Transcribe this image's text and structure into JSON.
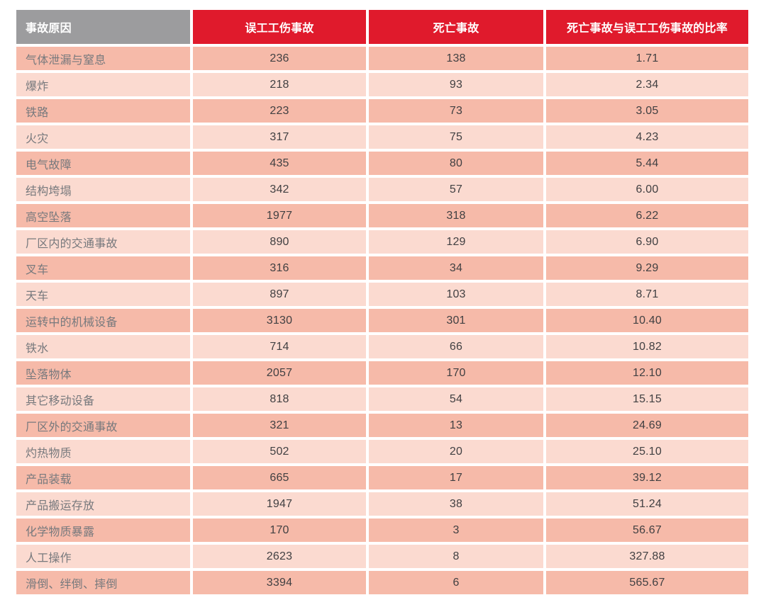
{
  "chart_data": {
    "type": "table",
    "columns": [
      "事故原因",
      "误工工伤事故",
      "死亡事故",
      "死亡事故与误工工伤事故的比率"
    ],
    "rows": [
      {
        "cause": "气体泄漏与窒息",
        "lost_time_injuries": "236",
        "fatal_accidents": "138",
        "ratio": "1.71"
      },
      {
        "cause": "爆炸",
        "lost_time_injuries": "218",
        "fatal_accidents": "93",
        "ratio": "2.34"
      },
      {
        "cause": "铁路",
        "lost_time_injuries": "223",
        "fatal_accidents": "73",
        "ratio": "3.05"
      },
      {
        "cause": "火灾",
        "lost_time_injuries": "317",
        "fatal_accidents": "75",
        "ratio": "4.23"
      },
      {
        "cause": "电气故障",
        "lost_time_injuries": "435",
        "fatal_accidents": "80",
        "ratio": "5.44"
      },
      {
        "cause": "结构垮塌",
        "lost_time_injuries": "342",
        "fatal_accidents": "57",
        "ratio": "6.00"
      },
      {
        "cause": "高空坠落",
        "lost_time_injuries": "1977",
        "fatal_accidents": "318",
        "ratio": "6.22"
      },
      {
        "cause": "厂区内的交通事故",
        "lost_time_injuries": "890",
        "fatal_accidents": "129",
        "ratio": "6.90"
      },
      {
        "cause": "叉车",
        "lost_time_injuries": "316",
        "fatal_accidents": "34",
        "ratio": "9.29"
      },
      {
        "cause": "天车",
        "lost_time_injuries": "897",
        "fatal_accidents": "103",
        "ratio": "8.71"
      },
      {
        "cause": "运转中的机械设备",
        "lost_time_injuries": "3130",
        "fatal_accidents": "301",
        "ratio": "10.40"
      },
      {
        "cause": "铁水",
        "lost_time_injuries": "714",
        "fatal_accidents": "66",
        "ratio": "10.82"
      },
      {
        "cause": "坠落物体",
        "lost_time_injuries": "2057",
        "fatal_accidents": "170",
        "ratio": "12.10"
      },
      {
        "cause": "其它移动设备",
        "lost_time_injuries": "818",
        "fatal_accidents": "54",
        "ratio": "15.15"
      },
      {
        "cause": "厂区外的交通事故",
        "lost_time_injuries": "321",
        "fatal_accidents": "13",
        "ratio": "24.69"
      },
      {
        "cause": "灼热物质",
        "lost_time_injuries": "502",
        "fatal_accidents": "20",
        "ratio": "25.10"
      },
      {
        "cause": "产品装载",
        "lost_time_injuries": "665",
        "fatal_accidents": "17",
        "ratio": "39.12"
      },
      {
        "cause": "产品搬运存放",
        "lost_time_injuries": "1947",
        "fatal_accidents": "38",
        "ratio": "51.24"
      },
      {
        "cause": "化学物质暴露",
        "lost_time_injuries": "170",
        "fatal_accidents": "3",
        "ratio": "56.67"
      },
      {
        "cause": "人工操作",
        "lost_time_injuries": "2623",
        "fatal_accidents": "8",
        "ratio": "327.88"
      },
      {
        "cause": "滑倒、绊倒、摔倒",
        "lost_time_injuries": "3394",
        "fatal_accidents": "6",
        "ratio": "565.67"
      }
    ],
    "layout": {
      "header_alignment": "cause column left, value columns centered",
      "row_striping": "odd rows dark salmon, even rows light salmon"
    }
  },
  "colors": {
    "header_gray": "#9c9c9e",
    "header_red": "#e01a2c",
    "header_text": "#ffffff",
    "row_dark": "#f6baa9",
    "row_light": "#fbdad0",
    "label_text": "#77797d",
    "number_text": "#414042",
    "page_background": "#ffffff"
  }
}
